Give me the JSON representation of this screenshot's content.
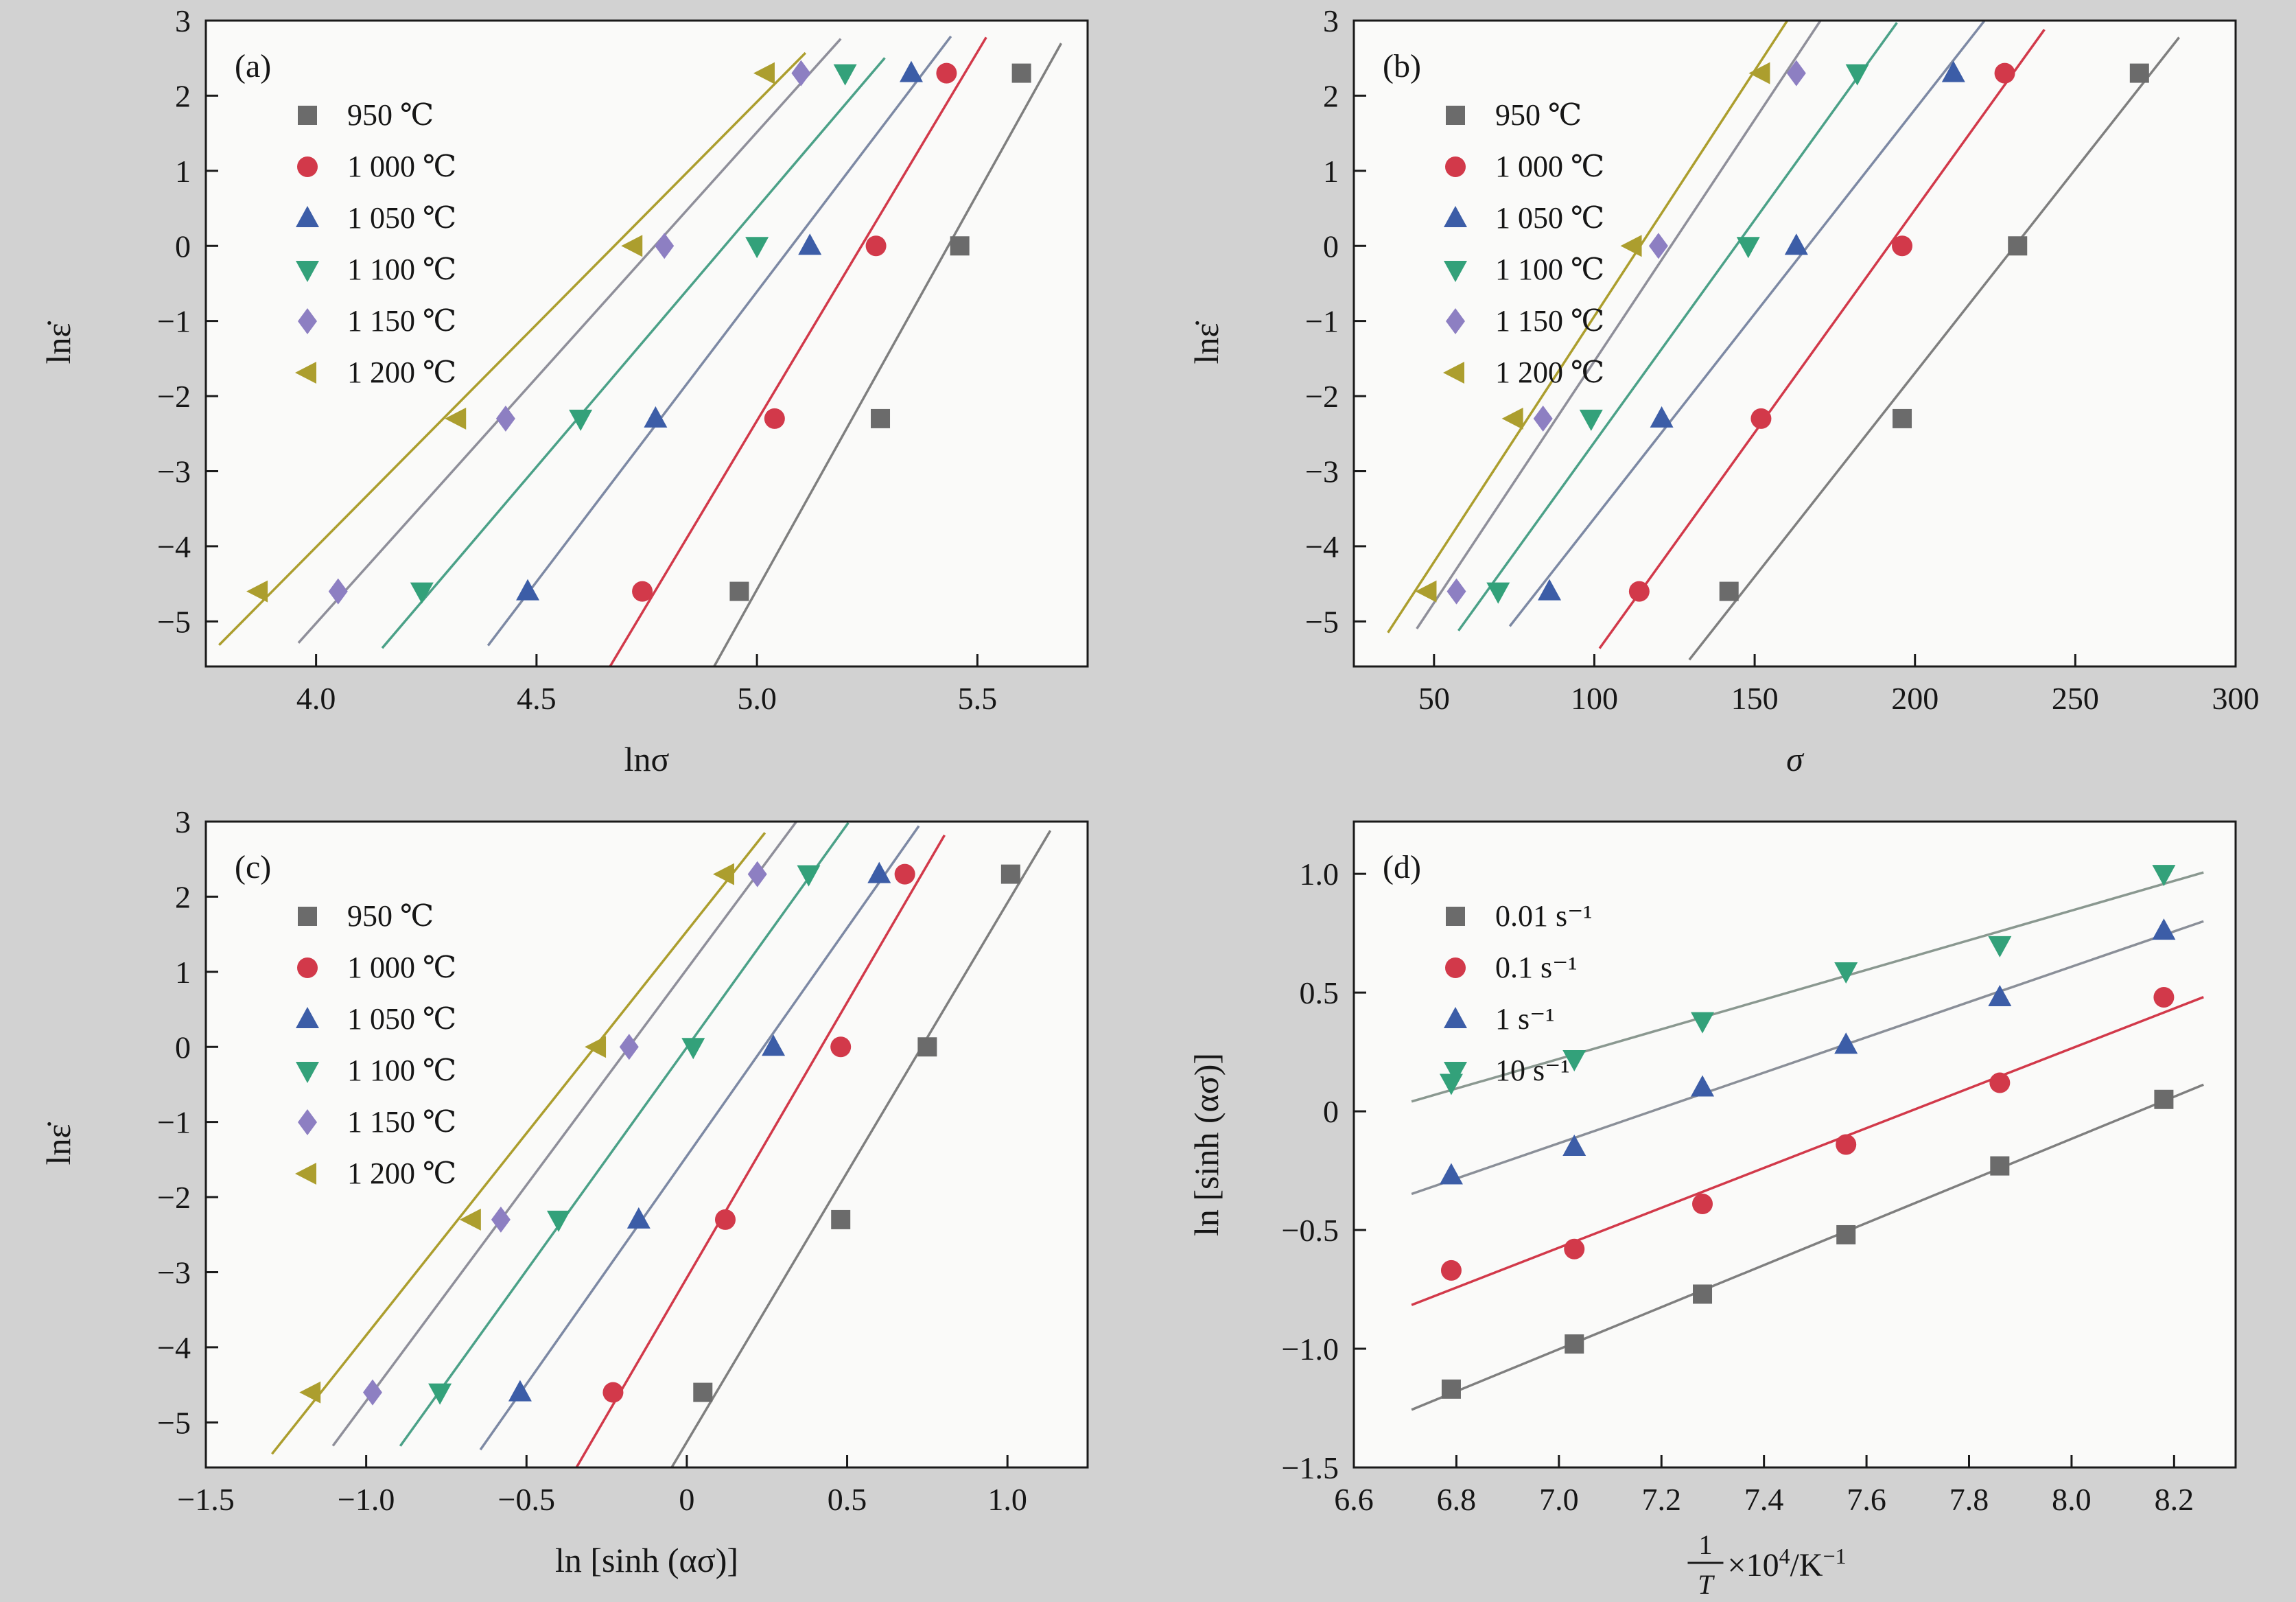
{
  "page": {
    "background": "#d2d2d2",
    "plot_bg": "#fafaf9",
    "axis_color": "#1a1a1a",
    "text_color": "#161616"
  },
  "chart_data": [
    {
      "tag": "(a)",
      "type": "scatter",
      "title": "",
      "xlabel": "lnσ",
      "xlabel_italic": false,
      "ylabel": "lnε̇",
      "xlim": [
        3.75,
        5.75
      ],
      "ylim": [
        -5.6,
        3
      ],
      "xticks": [
        4.0,
        4.5,
        5.0,
        5.5
      ],
      "xtick_labels": [
        "4.0",
        "4.5",
        "5.0",
        "5.5"
      ],
      "yticks": [
        3,
        2,
        1,
        0,
        -1,
        -2,
        -3,
        -4,
        -5
      ],
      "ytick_labels": [
        "3",
        "2",
        "1",
        "0",
        "−1",
        "−2",
        "−3",
        "−4",
        "−5"
      ],
      "grid": false,
      "legend_position": "top-left",
      "fit_lines": true,
      "series": [
        {
          "name": "950 ℃",
          "marker": "square",
          "color": "#6b6b6b",
          "line": "#7f7f7f",
          "x": [
            4.96,
            5.28,
            5.46,
            5.6
          ],
          "y": [
            -4.6,
            -2.3,
            0,
            2.3
          ]
        },
        {
          "name": "1 000 ℃",
          "marker": "circle",
          "color": "#d2394a",
          "line": "#d2394a",
          "x": [
            4.74,
            5.04,
            5.27,
            5.43
          ],
          "y": [
            -4.6,
            -2.3,
            0,
            2.3
          ]
        },
        {
          "name": "1 050 ℃",
          "marker": "triangle-up",
          "color": "#3c5da7",
          "line": "#7d89a4",
          "x": [
            4.48,
            4.77,
            5.12,
            5.35
          ],
          "y": [
            -4.6,
            -2.3,
            0,
            2.3
          ]
        },
        {
          "name": "1 100 ℃",
          "marker": "triangle-down",
          "color": "#33a17a",
          "line": "#4ba188",
          "x": [
            4.24,
            4.6,
            5.0,
            5.2
          ],
          "y": [
            -4.6,
            -2.3,
            0,
            2.3
          ]
        },
        {
          "name": "1 150 ℃",
          "marker": "diamond",
          "color": "#8d7fc2",
          "line": "#8f8f9a",
          "x": [
            4.05,
            4.43,
            4.79,
            5.1
          ],
          "y": [
            -4.6,
            -2.3,
            0,
            2.3
          ]
        },
        {
          "name": "1 200 ℃",
          "marker": "triangle-left",
          "color": "#ac9e2e",
          "line": "#ac9e2e",
          "x": [
            3.87,
            4.32,
            4.72,
            5.02
          ],
          "y": [
            -4.6,
            -2.3,
            0,
            2.3
          ]
        }
      ]
    },
    {
      "tag": "(b)",
      "type": "scatter",
      "title": "",
      "xlabel": "σ",
      "xlabel_italic": true,
      "ylabel": "lnε̇",
      "xlim": [
        25,
        300
      ],
      "ylim": [
        -5.6,
        3
      ],
      "xticks": [
        50,
        100,
        150,
        200,
        250,
        300
      ],
      "xtick_labels": [
        "50",
        "100",
        "150",
        "200",
        "250",
        "300"
      ],
      "yticks": [
        3,
        2,
        1,
        0,
        -1,
        -2,
        -3,
        -4,
        -5
      ],
      "ytick_labels": [
        "3",
        "2",
        "1",
        "0",
        "−1",
        "−2",
        "−3",
        "−4",
        "−5"
      ],
      "grid": false,
      "legend_position": "top-left",
      "fit_lines": true,
      "series": [
        {
          "name": "950 ℃",
          "marker": "square",
          "color": "#6b6b6b",
          "line": "#7f7f7f",
          "x": [
            142,
            196,
            232,
            270
          ],
          "y": [
            -4.6,
            -2.3,
            0,
            2.3
          ]
        },
        {
          "name": "1 000 ℃",
          "marker": "circle",
          "color": "#d2394a",
          "line": "#d2394a",
          "x": [
            114,
            152,
            196,
            228
          ],
          "y": [
            -4.6,
            -2.3,
            0,
            2.3
          ]
        },
        {
          "name": "1 050 ℃",
          "marker": "triangle-up",
          "color": "#3c5da7",
          "line": "#7d89a4",
          "x": [
            86,
            121,
            163,
            212
          ],
          "y": [
            -4.6,
            -2.3,
            0,
            2.3
          ]
        },
        {
          "name": "1 100 ℃",
          "marker": "triangle-down",
          "color": "#33a17a",
          "line": "#4ba188",
          "x": [
            70,
            99,
            148,
            182
          ],
          "y": [
            -4.6,
            -2.3,
            0,
            2.3
          ]
        },
        {
          "name": "1 150 ℃",
          "marker": "diamond",
          "color": "#8d7fc2",
          "line": "#8f8f9a",
          "x": [
            57,
            84,
            120,
            163
          ],
          "y": [
            -4.6,
            -2.3,
            0,
            2.3
          ]
        },
        {
          "name": "1 200 ℃",
          "marker": "triangle-left",
          "color": "#ac9e2e",
          "line": "#ac9e2e",
          "x": [
            48,
            75,
            112,
            152
          ],
          "y": [
            -4.6,
            -2.3,
            0,
            2.3
          ]
        }
      ]
    },
    {
      "tag": "(c)",
      "type": "scatter",
      "title": "",
      "xlabel": "ln [sinh (ασ)]",
      "xlabel_italic": false,
      "ylabel": "lnε̇",
      "xlim": [
        -1.5,
        1.25
      ],
      "ylim": [
        -5.6,
        3
      ],
      "xticks": [
        -1.5,
        -1.0,
        -0.5,
        0,
        0.5,
        1.0
      ],
      "xtick_labels": [
        "−1.5",
        "−1.0",
        "−0.5",
        "0",
        "0.5",
        "1.0"
      ],
      "yticks": [
        3,
        2,
        1,
        0,
        -1,
        -2,
        -3,
        -4,
        -5
      ],
      "ytick_labels": [
        "3",
        "2",
        "1",
        "0",
        "−1",
        "−2",
        "−3",
        "−4",
        "−5"
      ],
      "grid": false,
      "legend_position": "top-left",
      "fit_lines": true,
      "series": [
        {
          "name": "950 ℃",
          "marker": "square",
          "color": "#6b6b6b",
          "line": "#7f7f7f",
          "x": [
            0.05,
            0.48,
            0.75,
            1.01
          ],
          "y": [
            -4.6,
            -2.3,
            0,
            2.3
          ]
        },
        {
          "name": "1 000 ℃",
          "marker": "circle",
          "color": "#d2394a",
          "line": "#d2394a",
          "x": [
            -0.23,
            0.12,
            0.48,
            0.68
          ],
          "y": [
            -4.6,
            -2.3,
            0,
            2.3
          ]
        },
        {
          "name": "1 050 ℃",
          "marker": "triangle-up",
          "color": "#3c5da7",
          "line": "#7d89a4",
          "x": [
            -0.52,
            -0.15,
            0.27,
            0.6
          ],
          "y": [
            -4.6,
            -2.3,
            0,
            2.3
          ]
        },
        {
          "name": "1 100 ℃",
          "marker": "triangle-down",
          "color": "#33a17a",
          "line": "#4ba188",
          "x": [
            -0.77,
            -0.4,
            0.02,
            0.38
          ],
          "y": [
            -4.6,
            -2.3,
            0,
            2.3
          ]
        },
        {
          "name": "1 150 ℃",
          "marker": "diamond",
          "color": "#8d7fc2",
          "line": "#8f8f9a",
          "x": [
            -0.98,
            -0.58,
            -0.18,
            0.22
          ],
          "y": [
            -4.6,
            -2.3,
            0,
            2.3
          ]
        },
        {
          "name": "1 200 ℃",
          "marker": "triangle-left",
          "color": "#ac9e2e",
          "line": "#ac9e2e",
          "x": [
            -1.17,
            -0.67,
            -0.28,
            0.12
          ],
          "y": [
            -4.6,
            -2.3,
            0,
            2.3
          ]
        }
      ]
    },
    {
      "tag": "(d)",
      "type": "scatter",
      "title": "",
      "xlabel": "1/T×10⁴/K⁻¹",
      "xlabel_frac": {
        "num": "1",
        "den": "T",
        "part1": "×10",
        "sup1": "4",
        "part2": "/K",
        "sup2": "−1"
      },
      "xlabel_italic": false,
      "ylabel": "ln [sinh (ασ)]",
      "xlim": [
        6.6,
        8.32
      ],
      "ylim": [
        -1.5,
        1.22
      ],
      "xticks": [
        6.6,
        6.8,
        7.0,
        7.2,
        7.4,
        7.6,
        7.8,
        8.0,
        8.2
      ],
      "xtick_labels": [
        "6.6",
        "6.8",
        "7.0",
        "7.2",
        "7.4",
        "7.6",
        "7.8",
        "8.0",
        "8.2"
      ],
      "yticks": [
        1.0,
        0.5,
        0,
        -0.5,
        -1.0,
        -1.5
      ],
      "ytick_labels": [
        "1.0",
        "0.5",
        "0",
        "−0.5",
        "−1.0",
        "−1.5"
      ],
      "grid": false,
      "legend_position": "top-left",
      "fit_lines": true,
      "series": [
        {
          "name": "0.01 s⁻¹",
          "marker": "square",
          "color": "#6b6b6b",
          "line": "#7f7f7f",
          "x": [
            6.79,
            7.03,
            7.28,
            7.56,
            7.86,
            8.18
          ],
          "y": [
            -1.17,
            -0.98,
            -0.77,
            -0.52,
            -0.23,
            0.05
          ]
        },
        {
          "name": "0.1 s⁻¹",
          "marker": "circle",
          "color": "#d2394a",
          "line": "#d2394a",
          "x": [
            6.79,
            7.03,
            7.28,
            7.56,
            7.86,
            8.18
          ],
          "y": [
            -0.67,
            -0.58,
            -0.39,
            -0.14,
            0.12,
            0.48
          ]
        },
        {
          "name": "1 s⁻¹",
          "marker": "triangle-up",
          "color": "#3c5da7",
          "line": "#8a8f98",
          "x": [
            6.79,
            7.03,
            7.28,
            7.56,
            7.86,
            8.18
          ],
          "y": [
            -0.27,
            -0.15,
            0.1,
            0.28,
            0.48,
            0.76
          ]
        },
        {
          "name": "10 s⁻¹",
          "marker": "triangle-down",
          "color": "#33a17a",
          "line": "#8a9890",
          "x": [
            6.79,
            7.03,
            7.28,
            7.56,
            7.86,
            8.18
          ],
          "y": [
            0.12,
            0.22,
            0.38,
            0.59,
            0.7,
            1.0
          ]
        }
      ]
    }
  ]
}
